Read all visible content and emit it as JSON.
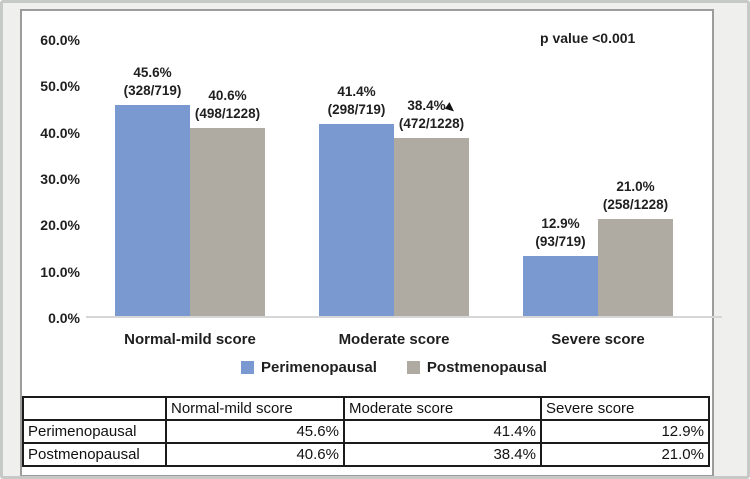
{
  "colors": {
    "perimenopausal": "#7a99d1",
    "postmenopausal": "#afaaa2",
    "panel_background": "#ffffff",
    "outer_background": "#eff0ee",
    "panel_border": "#9c9c9c",
    "axis_line": "#d6d6d6",
    "text": "#1f1f1f",
    "table_border": "#1b1b1b"
  },
  "chart_data": {
    "type": "bar",
    "title": "",
    "xlabel": "",
    "ylabel": "",
    "categories": [
      "Normal-mild score",
      "Moderate score",
      "Severe score"
    ],
    "series": [
      {
        "name": "Perimenopausal",
        "color": "#7a99d1",
        "values": [
          45.6,
          41.4,
          12.9
        ],
        "data_labels": [
          [
            "45.6%",
            "(328/719)"
          ],
          [
            "41.4%",
            "(298/719)"
          ],
          [
            "12.9%",
            "(93/719)"
          ]
        ]
      },
      {
        "name": "Postmenopausal",
        "color": "#afaaa2",
        "values": [
          40.6,
          38.4,
          21.0
        ],
        "data_labels": [
          [
            "40.6%",
            "(498/1228)"
          ],
          [
            "38.4%",
            "(472/1228)"
          ],
          [
            "21.0%",
            "(258/1228)"
          ]
        ]
      }
    ],
    "ylim": [
      0,
      60
    ],
    "yticks": [
      "60.0%",
      "50.0%",
      "40.0%",
      "30.0%",
      "20.0%",
      "10.0%",
      "0.0%"
    ],
    "grid": false,
    "legend_position": "bottom",
    "annotation": "p value <0.001"
  },
  "icons": {
    "cursor_marker": "mouse-pointer"
  },
  "cursor_marker_at": {
    "series_index": 1,
    "category_index": 1
  },
  "table": {
    "headers": [
      "",
      "Normal-mild score",
      "Moderate score",
      "Severe score"
    ],
    "rows": [
      {
        "label": "Perimenopausal",
        "values": [
          "45.6%",
          "41.4%",
          "12.9%"
        ]
      },
      {
        "label": "Postmenopausal",
        "values": [
          "40.6%",
          "38.4%",
          "21.0%"
        ]
      }
    ]
  }
}
